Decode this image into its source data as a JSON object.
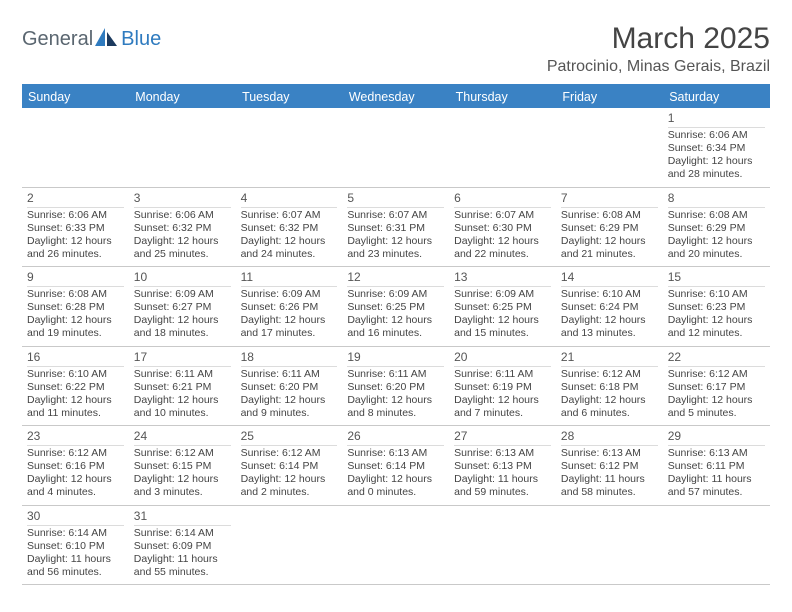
{
  "brand": {
    "part1": "General",
    "part2": "Blue"
  },
  "title": "March 2025",
  "location": "Patrocinio, Minas Gerais, Brazil",
  "colors": {
    "header_bg": "#3a82c4",
    "header_text": "#ffffff",
    "rule": "#c9c9c9",
    "body_text": "#444444"
  },
  "weekdays": [
    "Sunday",
    "Monday",
    "Tuesday",
    "Wednesday",
    "Thursday",
    "Friday",
    "Saturday"
  ],
  "weeks": [
    [
      null,
      null,
      null,
      null,
      null,
      null,
      {
        "d": "1",
        "sr": "Sunrise: 6:06 AM",
        "ss": "Sunset: 6:34 PM",
        "dl1": "Daylight: 12 hours",
        "dl2": "and 28 minutes."
      }
    ],
    [
      {
        "d": "2",
        "sr": "Sunrise: 6:06 AM",
        "ss": "Sunset: 6:33 PM",
        "dl1": "Daylight: 12 hours",
        "dl2": "and 26 minutes."
      },
      {
        "d": "3",
        "sr": "Sunrise: 6:06 AM",
        "ss": "Sunset: 6:32 PM",
        "dl1": "Daylight: 12 hours",
        "dl2": "and 25 minutes."
      },
      {
        "d": "4",
        "sr": "Sunrise: 6:07 AM",
        "ss": "Sunset: 6:32 PM",
        "dl1": "Daylight: 12 hours",
        "dl2": "and 24 minutes."
      },
      {
        "d": "5",
        "sr": "Sunrise: 6:07 AM",
        "ss": "Sunset: 6:31 PM",
        "dl1": "Daylight: 12 hours",
        "dl2": "and 23 minutes."
      },
      {
        "d": "6",
        "sr": "Sunrise: 6:07 AM",
        "ss": "Sunset: 6:30 PM",
        "dl1": "Daylight: 12 hours",
        "dl2": "and 22 minutes."
      },
      {
        "d": "7",
        "sr": "Sunrise: 6:08 AM",
        "ss": "Sunset: 6:29 PM",
        "dl1": "Daylight: 12 hours",
        "dl2": "and 21 minutes."
      },
      {
        "d": "8",
        "sr": "Sunrise: 6:08 AM",
        "ss": "Sunset: 6:29 PM",
        "dl1": "Daylight: 12 hours",
        "dl2": "and 20 minutes."
      }
    ],
    [
      {
        "d": "9",
        "sr": "Sunrise: 6:08 AM",
        "ss": "Sunset: 6:28 PM",
        "dl1": "Daylight: 12 hours",
        "dl2": "and 19 minutes."
      },
      {
        "d": "10",
        "sr": "Sunrise: 6:09 AM",
        "ss": "Sunset: 6:27 PM",
        "dl1": "Daylight: 12 hours",
        "dl2": "and 18 minutes."
      },
      {
        "d": "11",
        "sr": "Sunrise: 6:09 AM",
        "ss": "Sunset: 6:26 PM",
        "dl1": "Daylight: 12 hours",
        "dl2": "and 17 minutes."
      },
      {
        "d": "12",
        "sr": "Sunrise: 6:09 AM",
        "ss": "Sunset: 6:25 PM",
        "dl1": "Daylight: 12 hours",
        "dl2": "and 16 minutes."
      },
      {
        "d": "13",
        "sr": "Sunrise: 6:09 AM",
        "ss": "Sunset: 6:25 PM",
        "dl1": "Daylight: 12 hours",
        "dl2": "and 15 minutes."
      },
      {
        "d": "14",
        "sr": "Sunrise: 6:10 AM",
        "ss": "Sunset: 6:24 PM",
        "dl1": "Daylight: 12 hours",
        "dl2": "and 13 minutes."
      },
      {
        "d": "15",
        "sr": "Sunrise: 6:10 AM",
        "ss": "Sunset: 6:23 PM",
        "dl1": "Daylight: 12 hours",
        "dl2": "and 12 minutes."
      }
    ],
    [
      {
        "d": "16",
        "sr": "Sunrise: 6:10 AM",
        "ss": "Sunset: 6:22 PM",
        "dl1": "Daylight: 12 hours",
        "dl2": "and 11 minutes."
      },
      {
        "d": "17",
        "sr": "Sunrise: 6:11 AM",
        "ss": "Sunset: 6:21 PM",
        "dl1": "Daylight: 12 hours",
        "dl2": "and 10 minutes."
      },
      {
        "d": "18",
        "sr": "Sunrise: 6:11 AM",
        "ss": "Sunset: 6:20 PM",
        "dl1": "Daylight: 12 hours",
        "dl2": "and 9 minutes."
      },
      {
        "d": "19",
        "sr": "Sunrise: 6:11 AM",
        "ss": "Sunset: 6:20 PM",
        "dl1": "Daylight: 12 hours",
        "dl2": "and 8 minutes."
      },
      {
        "d": "20",
        "sr": "Sunrise: 6:11 AM",
        "ss": "Sunset: 6:19 PM",
        "dl1": "Daylight: 12 hours",
        "dl2": "and 7 minutes."
      },
      {
        "d": "21",
        "sr": "Sunrise: 6:12 AM",
        "ss": "Sunset: 6:18 PM",
        "dl1": "Daylight: 12 hours",
        "dl2": "and 6 minutes."
      },
      {
        "d": "22",
        "sr": "Sunrise: 6:12 AM",
        "ss": "Sunset: 6:17 PM",
        "dl1": "Daylight: 12 hours",
        "dl2": "and 5 minutes."
      }
    ],
    [
      {
        "d": "23",
        "sr": "Sunrise: 6:12 AM",
        "ss": "Sunset: 6:16 PM",
        "dl1": "Daylight: 12 hours",
        "dl2": "and 4 minutes."
      },
      {
        "d": "24",
        "sr": "Sunrise: 6:12 AM",
        "ss": "Sunset: 6:15 PM",
        "dl1": "Daylight: 12 hours",
        "dl2": "and 3 minutes."
      },
      {
        "d": "25",
        "sr": "Sunrise: 6:12 AM",
        "ss": "Sunset: 6:14 PM",
        "dl1": "Daylight: 12 hours",
        "dl2": "and 2 minutes."
      },
      {
        "d": "26",
        "sr": "Sunrise: 6:13 AM",
        "ss": "Sunset: 6:14 PM",
        "dl1": "Daylight: 12 hours",
        "dl2": "and 0 minutes."
      },
      {
        "d": "27",
        "sr": "Sunrise: 6:13 AM",
        "ss": "Sunset: 6:13 PM",
        "dl1": "Daylight: 11 hours",
        "dl2": "and 59 minutes."
      },
      {
        "d": "28",
        "sr": "Sunrise: 6:13 AM",
        "ss": "Sunset: 6:12 PM",
        "dl1": "Daylight: 11 hours",
        "dl2": "and 58 minutes."
      },
      {
        "d": "29",
        "sr": "Sunrise: 6:13 AM",
        "ss": "Sunset: 6:11 PM",
        "dl1": "Daylight: 11 hours",
        "dl2": "and 57 minutes."
      }
    ],
    [
      {
        "d": "30",
        "sr": "Sunrise: 6:14 AM",
        "ss": "Sunset: 6:10 PM",
        "dl1": "Daylight: 11 hours",
        "dl2": "and 56 minutes."
      },
      {
        "d": "31",
        "sr": "Sunrise: 6:14 AM",
        "ss": "Sunset: 6:09 PM",
        "dl1": "Daylight: 11 hours",
        "dl2": "and 55 minutes."
      },
      null,
      null,
      null,
      null,
      null
    ]
  ]
}
